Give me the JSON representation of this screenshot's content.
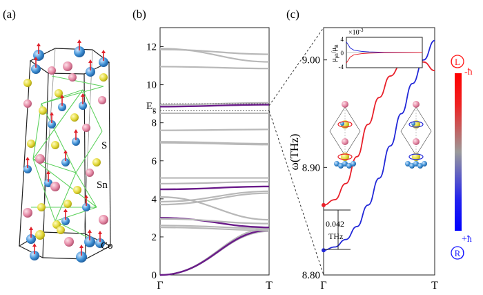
{
  "panels": {
    "a": {
      "label": "(a)",
      "atoms": {
        "s": "S",
        "sn": "Sn",
        "co": "Co"
      },
      "colors": {
        "s": "#e3d93a",
        "sn": "#e58aa6",
        "co": "#3d8fd4",
        "spin": "#e0202a",
        "bond": "#5fd25f"
      }
    },
    "b": {
      "label": "(b)",
      "x_ticks": [
        "Γ",
        "T"
      ],
      "y_ticks": [
        "0",
        "2",
        "4",
        "6",
        "8",
        "10",
        "12"
      ],
      "ylim": [
        0,
        13
      ],
      "eg_label": "E",
      "eg_sub": "g",
      "eg_levels": [
        9.0,
        8.65
      ]
    },
    "c": {
      "label": "(c)",
      "ylabel": "ω(THz)",
      "x_ticks": [
        "Γ",
        "T"
      ],
      "y_ticks": [
        "8.80",
        "8.90",
        "9.00"
      ],
      "ylim": [
        8.8,
        9.03
      ],
      "gap_value": "0.042",
      "gap_unit": "THz",
      "inset": {
        "ylabel": "μ",
        "ylabel_sub1": "ph",
        "ylabel_sep": "/μ",
        "ylabel_sub2": "B",
        "scale": "×10",
        "scale_exp": "-3",
        "y_ticks": [
          "4",
          "0",
          "-4"
        ]
      }
    },
    "colorbar": {
      "top_circle": "L",
      "top_label": "-ħ",
      "bottom_circle": "R",
      "bottom_label": "+ħ",
      "top_color": "#ff1a1a",
      "bottom_color": "#1a1aff"
    }
  },
  "chart_data": [
    {
      "type": "line",
      "panel": "b",
      "x_categories": [
        "Γ",
        "T"
      ],
      "ylim": [
        0,
        13
      ],
      "series": [
        {
          "style": "gray",
          "values": [
            0,
            2.3
          ]
        },
        {
          "style": "gray",
          "values": [
            0,
            2.45
          ]
        },
        {
          "style": "purple",
          "values": [
            0,
            2.35
          ]
        },
        {
          "style": "gray",
          "values": [
            2.5,
            2.35
          ]
        },
        {
          "style": "gray",
          "values": [
            2.6,
            2.45
          ]
        },
        {
          "style": "purple",
          "values": [
            3.0,
            2.5
          ]
        },
        {
          "style": "gray",
          "values": [
            2.95,
            2.7
          ]
        },
        {
          "style": "gray",
          "values": [
            4.1,
            2.9
          ]
        },
        {
          "style": "gray",
          "values": [
            3.85,
            4.4
          ]
        },
        {
          "style": "gray",
          "values": [
            3.7,
            4.3
          ]
        },
        {
          "style": "purple",
          "values": [
            4.5,
            4.65
          ]
        },
        {
          "style": "gray",
          "values": [
            5.1,
            5.1
          ]
        },
        {
          "style": "gray",
          "values": [
            4.8,
            4.9
          ]
        },
        {
          "style": "gray",
          "values": [
            6.95,
            6.85
          ]
        },
        {
          "style": "gray",
          "values": [
            7.0,
            6.9
          ]
        },
        {
          "style": "gray",
          "values": [
            7.6,
            7.65
          ]
        },
        {
          "style": "gray",
          "values": [
            8.5,
            8.5
          ]
        },
        {
          "style": "purple",
          "values": [
            8.85,
            8.95
          ]
        },
        {
          "style": "gray",
          "values": [
            8.95,
            9.05
          ]
        },
        {
          "style": "gray",
          "values": [
            10.95,
            10.85
          ]
        },
        {
          "style": "gray",
          "values": [
            11.85,
            11.6
          ]
        },
        {
          "style": "gray",
          "values": [
            11.9,
            11.2
          ]
        }
      ]
    },
    {
      "type": "line",
      "panel": "c",
      "x_categories": [
        "Γ",
        "T"
      ],
      "ylim": [
        8.8,
        9.03
      ],
      "series": [
        {
          "color": "red",
          "x": [
            0,
            0.1,
            0.2,
            0.3,
            0.4,
            0.5,
            0.6,
            0.7,
            0.8,
            0.9,
            1.0
          ],
          "values": [
            8.865,
            8.87,
            8.885,
            8.91,
            8.94,
            8.965,
            8.985,
            8.996,
            9.0,
            8.998,
            8.99
          ]
        },
        {
          "color": "blue",
          "x": [
            0,
            0.1,
            0.2,
            0.3,
            0.4,
            0.5,
            0.6,
            0.7,
            0.8,
            0.9,
            1.0
          ],
          "values": [
            8.823,
            8.826,
            8.833,
            8.845,
            8.865,
            8.89,
            8.92,
            8.95,
            8.978,
            9.0,
            9.018
          ]
        }
      ]
    },
    {
      "type": "line",
      "panel": "c-inset",
      "ylim": [
        -4,
        4
      ],
      "series": [
        {
          "color": "blue",
          "x": [
            0,
            0.05,
            0.1,
            0.2,
            0.3,
            0.5,
            1.0
          ],
          "values": [
            2.8,
            1.2,
            0.6,
            0.3,
            0.15,
            0.05,
            0.0
          ]
        },
        {
          "color": "red",
          "x": [
            0,
            0.05,
            0.1,
            0.2,
            0.3,
            0.5,
            1.0
          ],
          "values": [
            -2.8,
            -1.2,
            -0.6,
            -0.3,
            -0.15,
            -0.05,
            0.0
          ]
        }
      ]
    }
  ]
}
